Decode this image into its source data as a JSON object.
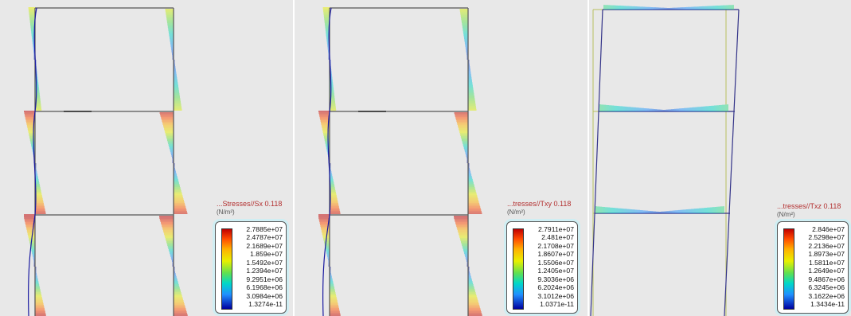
{
  "panels": [
    {
      "title": "...Stresses//Sx  0.118",
      "unit": "(N/m²)",
      "scale": [
        "2.7885e+07",
        "2.4787e+07",
        "2.1689e+07",
        "1.859e+07",
        "1.5492e+07",
        "1.2394e+07",
        "9.2951e+06",
        "6.1968e+06",
        "3.0984e+06",
        "1.3274e-11"
      ]
    },
    {
      "title": "...tresses//Txy  0.118",
      "unit": "(N/m²)",
      "scale": [
        "2.7911e+07",
        "2.481e+07",
        "2.1708e+07",
        "1.8607e+07",
        "1.5506e+07",
        "1.2405e+07",
        "9.3036e+06",
        "6.2024e+06",
        "3.1012e+06",
        "1.0371e-11"
      ]
    },
    {
      "title": "...tresses//Txz  0.118",
      "unit": "(N/m²)",
      "scale": [
        "2.846e+07",
        "2.5298e+07",
        "2.2136e+07",
        "1.8973e+07",
        "1.5811e+07",
        "1.2649e+07",
        "9.4867e+06",
        "6.3245e+06",
        "3.1622e+06",
        "1.3434e-11"
      ]
    }
  ],
  "colors": {
    "frame": "#555555",
    "background": "#e8e8e8",
    "legend_border": "#cfeef3"
  }
}
